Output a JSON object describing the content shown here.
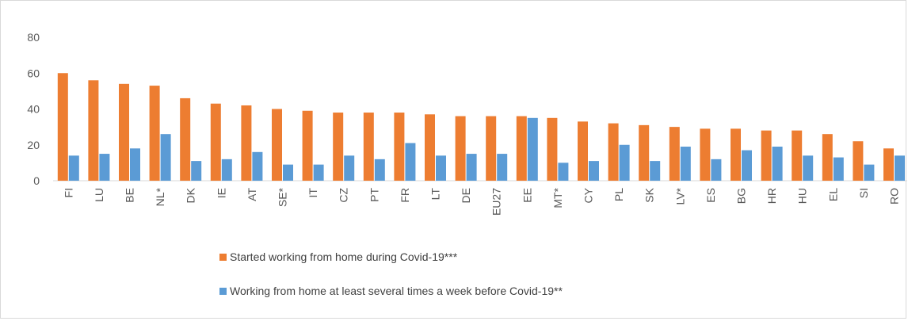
{
  "chart_data": {
    "type": "bar",
    "categories": [
      "FI",
      "LU",
      "BE",
      "NL*",
      "DK",
      "IE",
      "AT",
      "SE*",
      "IT",
      "CZ",
      "PT",
      "FR",
      "LT",
      "DE",
      "EU27",
      "EE",
      "MT*",
      "CY",
      "PL",
      "SK",
      "LV*",
      "ES",
      "BG",
      "HR",
      "HU",
      "EL",
      "SI",
      "RO"
    ],
    "series": [
      {
        "name": "Started working from home during Covid-19***",
        "color": "#ED7D31",
        "values": [
          60,
          56,
          54,
          53,
          46,
          43,
          42,
          40,
          39,
          38,
          38,
          38,
          37,
          36,
          36,
          36,
          35,
          33,
          32,
          31,
          30,
          29,
          29,
          28,
          28,
          26,
          22,
          18
        ]
      },
      {
        "name": "Working from home at least several times a week before Covid-19**",
        "color": "#5B9BD5",
        "values": [
          14,
          15,
          18,
          26,
          11,
          12,
          16,
          9,
          9,
          14,
          12,
          21,
          14,
          15,
          15,
          35,
          10,
          11,
          20,
          11,
          19,
          12,
          17,
          19,
          14,
          13,
          9,
          14
        ]
      }
    ],
    "yticks": [
      0,
      20,
      40,
      60,
      80
    ],
    "ylim": [
      0,
      80
    ],
    "grid": false,
    "legend_position": "bottom"
  }
}
